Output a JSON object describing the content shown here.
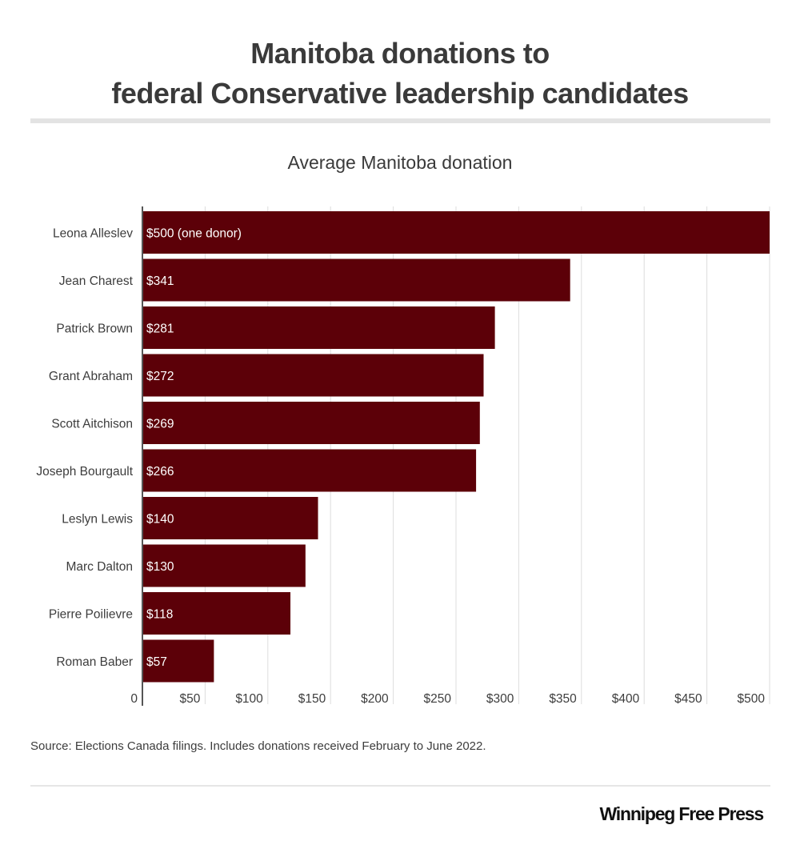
{
  "header": {
    "title_line1": "Manitoba donations to",
    "title_line2": "federal Conservative leadership candidates"
  },
  "chart_data": {
    "type": "bar",
    "orientation": "horizontal",
    "title": "Average Manitoba donation",
    "xlabel": "",
    "ylabel": "",
    "categories": [
      "Leona Alleslev",
      "Jean Charest",
      "Patrick Brown",
      "Grant Abraham",
      "Scott Aitchison",
      "Joseph Bourgault",
      "Leslyn Lewis",
      "Marc Dalton",
      "Pierre Poilievre",
      "Roman Baber"
    ],
    "values": [
      500,
      341,
      281,
      272,
      269,
      266,
      140,
      130,
      118,
      57
    ],
    "data_labels": [
      "$500 (one donor)",
      "$341",
      "$281",
      "$272",
      "$269",
      "$266",
      "$140",
      "$130",
      "$118",
      "$57"
    ],
    "xlim": [
      0,
      500
    ],
    "x_ticks": [
      0,
      50,
      100,
      150,
      200,
      250,
      300,
      350,
      400,
      450,
      500
    ],
    "x_tick_labels": [
      "0",
      "$50",
      "$100",
      "$150",
      "$200",
      "$250",
      "$300",
      "$350",
      "$400",
      "$450",
      "$500"
    ],
    "grid": true,
    "legend": "none",
    "colors": {
      "bar": "#5c0008",
      "bar_label": "#ffffff",
      "grid": "#dddddd",
      "axis": "#555555"
    }
  },
  "footer": {
    "source": "Source: Elections Canada filings. Includes donations received February to June 2022.",
    "brand": "Winnipeg Free Press"
  }
}
